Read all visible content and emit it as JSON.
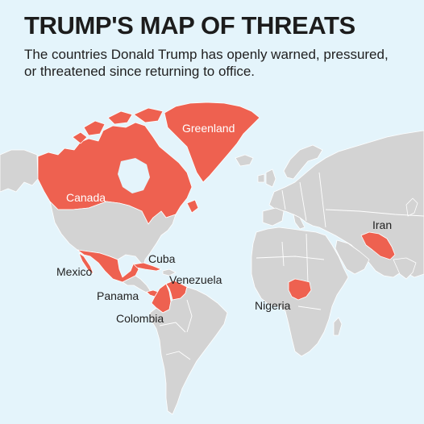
{
  "header": {
    "title": "TRUMP'S MAP OF THREATS",
    "subtitle": "The countries Donald Trump has openly warned, pressured, or threatened since returning to office."
  },
  "map": {
    "colors": {
      "ocean": "#e4f4fb",
      "land": "#d3d3d3",
      "highlight": "#ee6150",
      "border": "#ffffff"
    },
    "countries": {
      "greenland": "Greenland",
      "canada": "Canada",
      "mexico": "Mexico",
      "cuba": "Cuba",
      "venezuela": "Venezuela",
      "panama": "Panama",
      "colombia": "Colombia",
      "nigeria": "Nigeria",
      "iran": "Iran"
    }
  }
}
